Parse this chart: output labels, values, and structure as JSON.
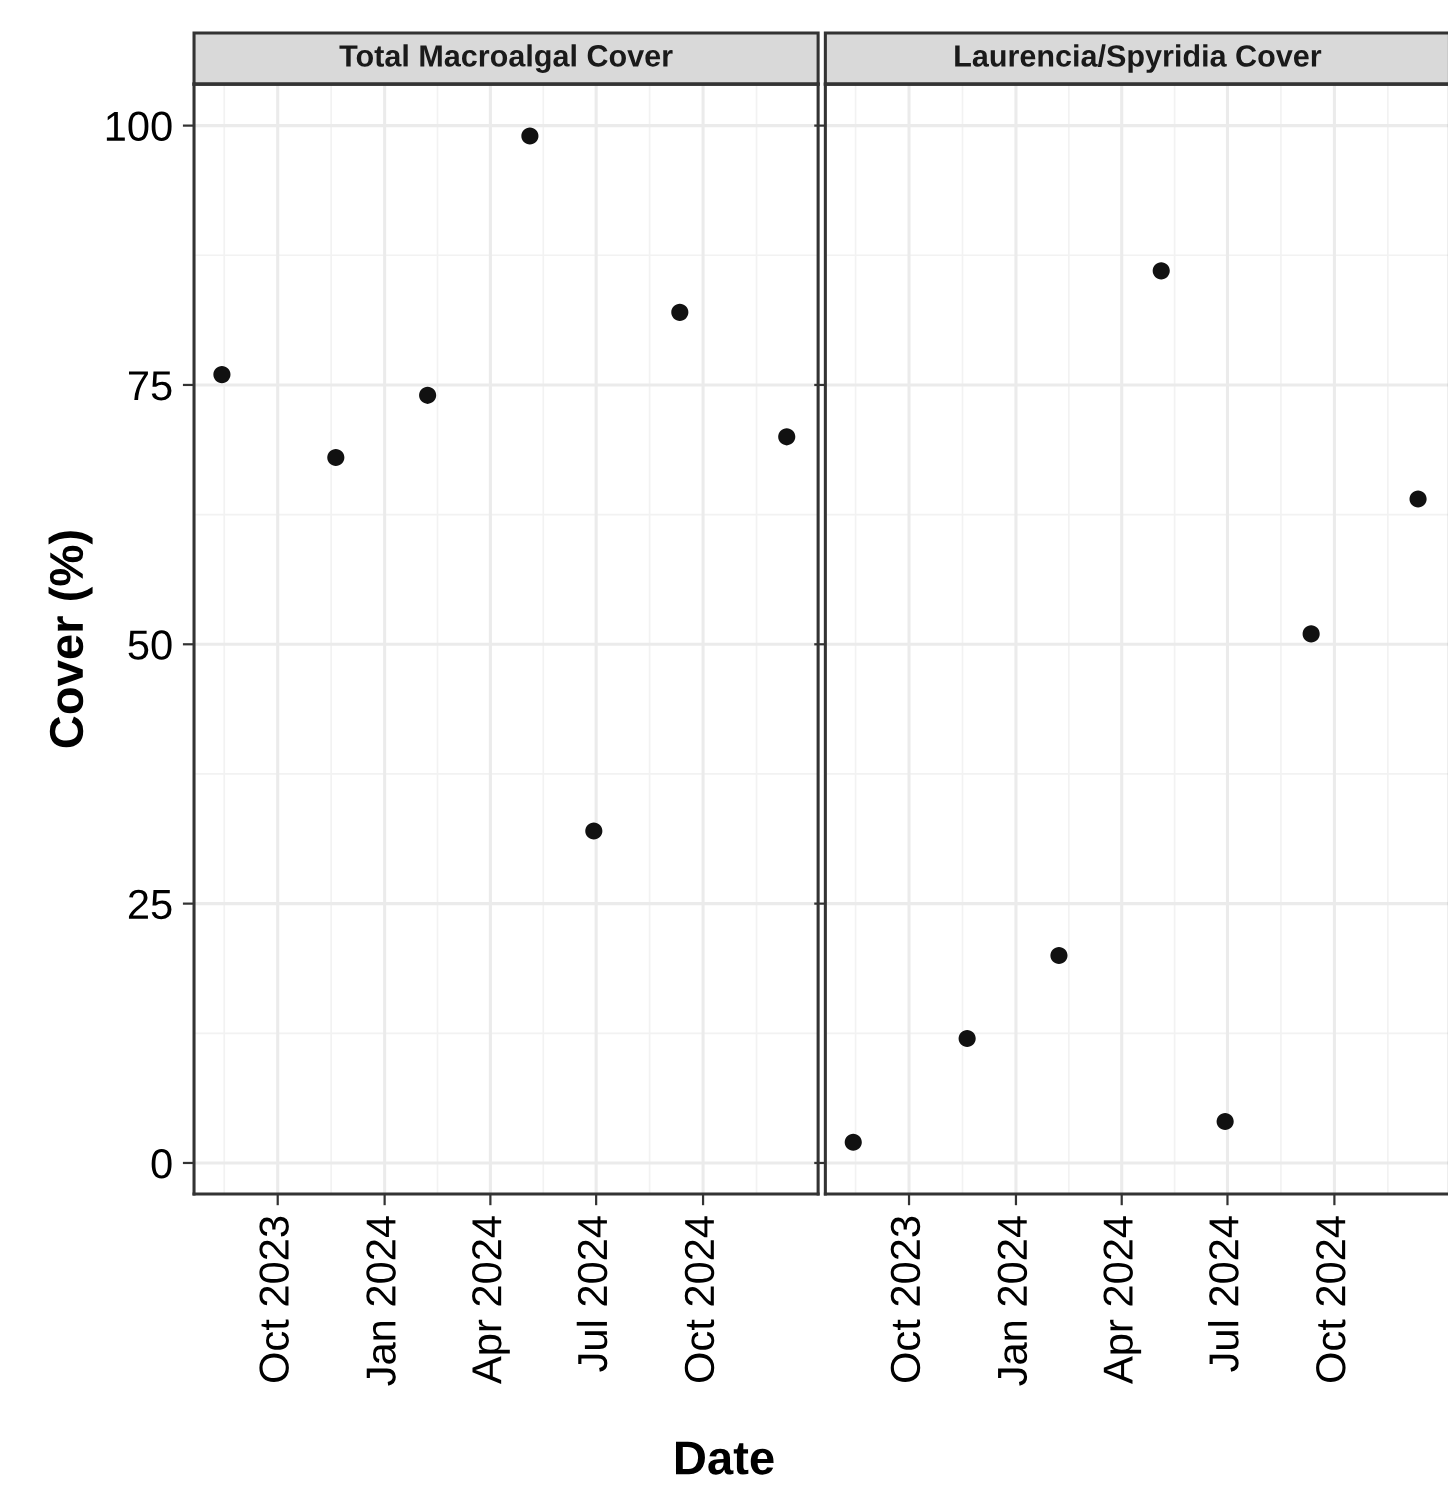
{
  "chart_data": [
    {
      "type": "scatter",
      "title": "Total Macroalgal Cover",
      "ylabel": "Cover (%)",
      "xlabel": "Date",
      "x": [
        "2023-08-14",
        "2023-11-20",
        "2024-02-07",
        "2024-05-05",
        "2024-06-29",
        "2024-09-11",
        "2024-12-12"
      ],
      "series": [
        {
          "color": "#111111",
          "values": [
            76,
            68,
            74,
            99,
            32,
            82,
            70
          ]
        }
      ],
      "xlim": [
        "2023-07-21",
        "2025-01-08"
      ],
      "xticks": [
        {
          "value": "2023-10-01",
          "label": "Oct 2023"
        },
        {
          "value": "2024-01-01",
          "label": "Jan 2024"
        },
        {
          "value": "2024-04-01",
          "label": "Apr 2024"
        },
        {
          "value": "2024-07-01",
          "label": "Jul 2024"
        },
        {
          "value": "2024-10-01",
          "label": "Oct 2024"
        }
      ],
      "ylim": [
        -3,
        104
      ],
      "yticks": [
        0,
        25,
        50,
        75,
        100
      ],
      "grid": true,
      "marker": "circle"
    },
    {
      "type": "scatter",
      "title": "Laurencia/Spyridia Cover",
      "x": [
        "2023-08-14",
        "2023-11-20",
        "2024-02-07",
        "2024-05-05",
        "2024-06-29",
        "2024-09-11",
        "2024-12-12"
      ],
      "series": [
        {
          "color": "#111111",
          "values": [
            2,
            12,
            20,
            86,
            4,
            51,
            64
          ]
        }
      ],
      "xlim": [
        "2023-07-21",
        "2025-01-08"
      ],
      "xticks": [
        {
          "value": "2023-10-01",
          "label": "Oct 2023"
        },
        {
          "value": "2024-01-01",
          "label": "Jan 2024"
        },
        {
          "value": "2024-04-01",
          "label": "Apr 2024"
        },
        {
          "value": "2024-07-01",
          "label": "Jul 2024"
        },
        {
          "value": "2024-10-01",
          "label": "Oct 2024"
        }
      ],
      "ylim": [
        -3,
        104
      ],
      "yticks": [
        0,
        25,
        50,
        75,
        100
      ],
      "grid": true,
      "marker": "circle",
      "tick_labels": "x"
    }
  ]
}
